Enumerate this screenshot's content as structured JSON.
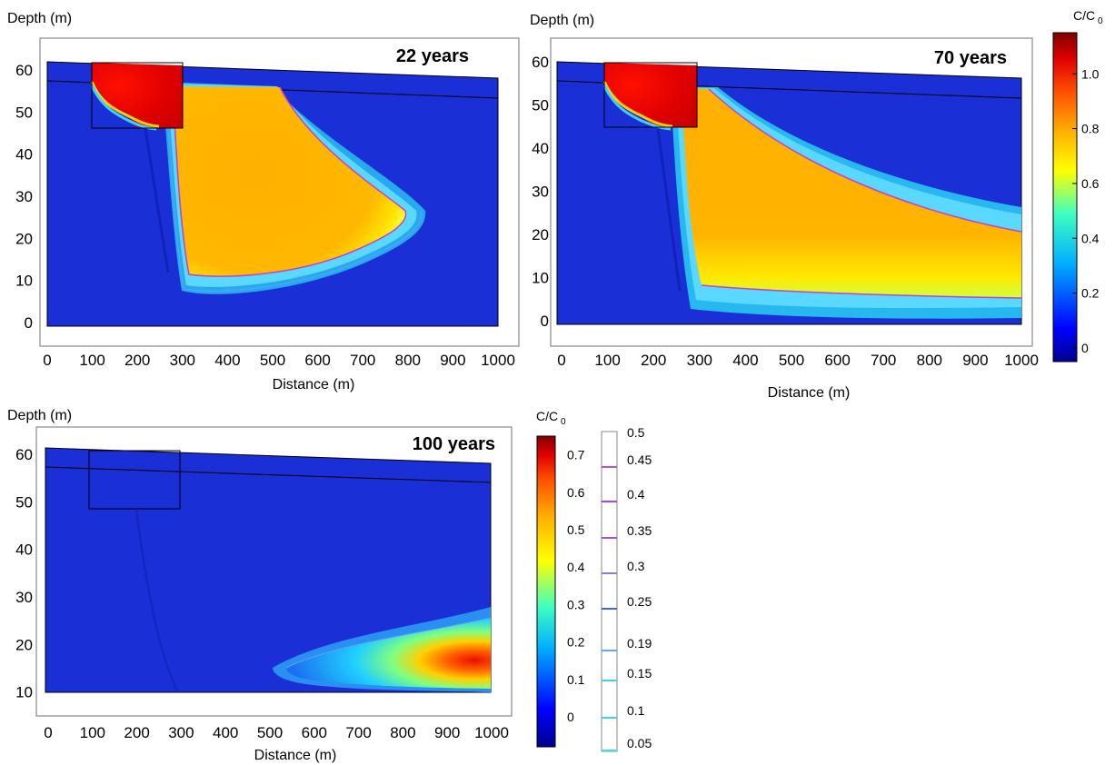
{
  "colors": {
    "background_blue": "#1a2fd6",
    "frame": "#888888",
    "colormap": [
      "#00008f",
      "#0000ff",
      "#00b0ff",
      "#3fffbf",
      "#ffff00",
      "#ffb000",
      "#ff5000",
      "#e00000",
      "#800000"
    ],
    "contour_colors": [
      "#3fe0e8",
      "#40d0f0",
      "#50c8f0",
      "#5aa8ff",
      "#4060ff",
      "#8080e0",
      "#a050e0",
      "#b040e0",
      "#c050d0",
      "#d040d0"
    ]
  },
  "chart_data": [
    {
      "type": "heatmap",
      "panel": "22 years",
      "title": "22 years",
      "xlabel": "Distance (m)",
      "ylabel": "Depth (m)",
      "xlim": [
        0,
        1000
      ],
      "ylim": [
        0,
        62
      ],
      "xticks": [
        "0",
        "100",
        "200",
        "300",
        "400",
        "500",
        "600",
        "700",
        "800",
        "900",
        "1000"
      ],
      "yticks": [
        "0",
        "10",
        "20",
        "30",
        "40",
        "50",
        "60"
      ],
      "source_zone": {
        "x": [
          130,
          330
        ],
        "y": [
          46,
          62
        ],
        "peak_concentration": 1.15
      },
      "plume": {
        "x_extent": [
          320,
          830
        ],
        "depth_extent": [
          8,
          60
        ],
        "core_concentration": 0.8,
        "tip_distance": 830,
        "tip_depth": 25
      }
    },
    {
      "type": "heatmap",
      "panel": "70 years",
      "title": "70 years",
      "xlabel": "Distance (m)",
      "ylabel": "Depth (m)",
      "xlim": [
        0,
        1000
      ],
      "ylim": [
        0,
        62
      ],
      "xticks": [
        "0",
        "100",
        "200",
        "300",
        "400",
        "500",
        "600",
        "700",
        "800",
        "900",
        "1000"
      ],
      "yticks": [
        "0",
        "10",
        "20",
        "30",
        "40",
        "50",
        "60"
      ],
      "source_zone": {
        "x": [
          100,
          300
        ],
        "y": [
          46,
          62
        ],
        "peak_concentration": 1.15
      },
      "plume": {
        "x_extent": [
          270,
          1000
        ],
        "depth_extent": [
          3,
          60
        ],
        "core_concentration": 0.8,
        "tip_distance": 1000,
        "tip_depth_range": [
          3,
          25
        ]
      },
      "colorbar": {
        "label_main": "C/C",
        "label_sub": "0",
        "ticks": [
          "0",
          "0.2",
          "0.4",
          "0.6",
          "0.8",
          "1.0"
        ],
        "range": [
          -0.05,
          1.15
        ]
      }
    },
    {
      "type": "heatmap",
      "panel": "100 years",
      "title": "100 years",
      "xlabel": "Distance (m)",
      "ylabel": "Depth (m)",
      "xlim": [
        0,
        1000
      ],
      "ylim": [
        0,
        62
      ],
      "xticks": [
        "0",
        "100",
        "200",
        "300",
        "400",
        "500",
        "600",
        "700",
        "800",
        "900",
        "1000"
      ],
      "yticks": [
        "10",
        "20",
        "30",
        "40",
        "50",
        "60"
      ],
      "source_zone": {
        "x": [
          100,
          300
        ],
        "y": [
          46,
          62
        ],
        "peak_concentration": 0
      },
      "plume": {
        "x_extent": [
          520,
          1000
        ],
        "depth_extent": [
          0,
          20
        ],
        "core_concentration": 0.7
      },
      "colorbar": {
        "label_main": "C/C",
        "label_sub": "0",
        "ticks": [
          "0",
          "0.1",
          "0.2",
          "0.3",
          "0.4",
          "0.5",
          "0.6",
          "0.7"
        ],
        "range": [
          -0.08,
          0.75
        ]
      },
      "contour_legend": {
        "levels": [
          "0.5",
          "0.45",
          "0.4",
          "0.35",
          "0.3",
          "0.25",
          "0.19",
          "0.15",
          "0.1",
          "0.05"
        ]
      }
    }
  ]
}
